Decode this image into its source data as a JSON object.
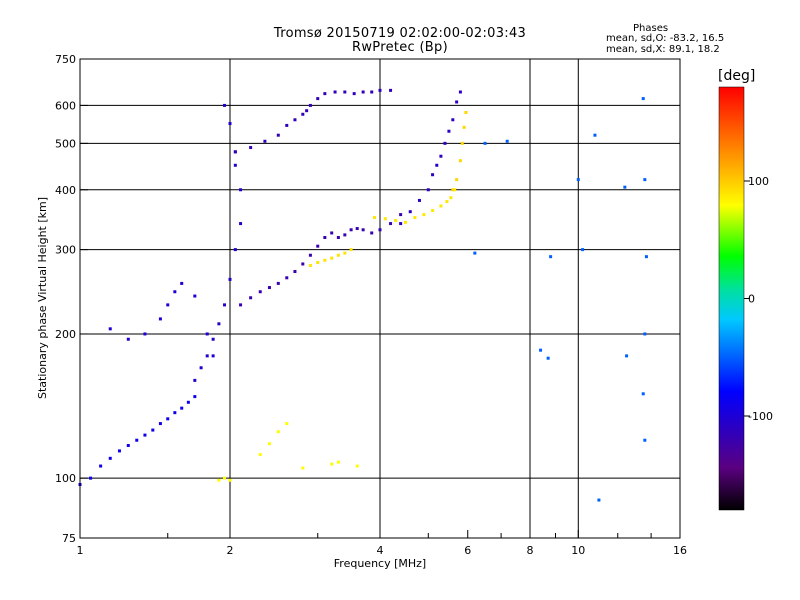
{
  "title": {
    "line1": "Tromsø 20150719 02:02:00-02:03:43",
    "line2": "RwPretec (Bp)"
  },
  "phases": {
    "heading": "Phases",
    "line_o": "mean, sd,O: -83.2, 16.5",
    "line_x": "mean, sd,X:  89.1, 18.2"
  },
  "chart_data": {
    "type": "scatter",
    "title": "Tromsø 20150719 02:02:00-02:03:43",
    "subtitle": "RwPretec (Bp)",
    "xlabel": "Frequency [MHz]",
    "ylabel": "Stationary phase Virtual Height [km]",
    "x_scale": "log",
    "y_scale": "log",
    "xlim": [
      1,
      16
    ],
    "ylim": [
      75,
      750
    ],
    "x_ticks": [
      1,
      2,
      4,
      6,
      8,
      10,
      16
    ],
    "x_tick_labels": [
      "1",
      "2",
      "4",
      "6",
      "8",
      "10",
      "16"
    ],
    "x_gridlines": [
      2,
      4,
      8,
      10
    ],
    "y_ticks": [
      75,
      100,
      200,
      300,
      400,
      500,
      600,
      750
    ],
    "y_tick_labels": [
      "75",
      "100",
      "200",
      "300",
      "400",
      "500",
      "600",
      "750"
    ],
    "y_gridlines": [
      100,
      200,
      300,
      400,
      500,
      600
    ],
    "grid": true,
    "colorbar": {
      "label": "[deg]",
      "ticks": [
        100,
        0,
        -100
      ],
      "tick_labels": [
        "100",
        "0",
        "-100"
      ],
      "range": [
        -180,
        180
      ]
    },
    "series": [
      {
        "values": [
          [
            1.0,
            97
          ],
          [
            1.05,
            100
          ],
          [
            1.1,
            106
          ],
          [
            1.15,
            110
          ],
          [
            1.2,
            114
          ],
          [
            1.25,
            117
          ],
          [
            1.3,
            120
          ],
          [
            1.35,
            123
          ],
          [
            1.4,
            126
          ],
          [
            1.45,
            130
          ],
          [
            1.5,
            133
          ],
          [
            1.55,
            137
          ],
          [
            1.6,
            140
          ],
          [
            1.65,
            144
          ],
          [
            1.7,
            148
          ]
        ],
        "phase": -90
      },
      {
        "values": [
          [
            1.15,
            205
          ],
          [
            1.25,
            195
          ],
          [
            1.35,
            200
          ],
          [
            1.45,
            215
          ],
          [
            1.5,
            230
          ],
          [
            1.55,
            245
          ],
          [
            1.6,
            255
          ],
          [
            1.7,
            240
          ],
          [
            1.8,
            200
          ],
          [
            1.85,
            180
          ]
        ],
        "phase": -100
      },
      {
        "values": [
          [
            1.7,
            160
          ],
          [
            1.75,
            170
          ],
          [
            1.8,
            180
          ],
          [
            1.85,
            195
          ],
          [
            1.9,
            210
          ],
          [
            1.95,
            230
          ],
          [
            2.0,
            260
          ],
          [
            2.05,
            300
          ],
          [
            2.1,
            340
          ],
          [
            2.1,
            400
          ],
          [
            2.05,
            450
          ],
          [
            2.05,
            480
          ],
          [
            2.0,
            550
          ],
          [
            1.95,
            600
          ]
        ],
        "phase": -105
      },
      {
        "values": [
          [
            2.05,
            480
          ],
          [
            2.2,
            490
          ],
          [
            2.35,
            505
          ],
          [
            2.5,
            520
          ],
          [
            2.6,
            545
          ],
          [
            2.7,
            560
          ],
          [
            2.8,
            575
          ],
          [
            2.85,
            585
          ],
          [
            2.9,
            600
          ],
          [
            3.0,
            620
          ],
          [
            3.1,
            635
          ],
          [
            3.25,
            640
          ],
          [
            3.4,
            640
          ],
          [
            3.55,
            635
          ],
          [
            3.7,
            640
          ],
          [
            3.85,
            640
          ],
          [
            4.0,
            645
          ],
          [
            4.2,
            645
          ]
        ],
        "phase": -115
      },
      {
        "values": [
          [
            2.1,
            230
          ],
          [
            2.2,
            238
          ],
          [
            2.3,
            245
          ],
          [
            2.4,
            250
          ],
          [
            2.5,
            255
          ],
          [
            2.6,
            262
          ],
          [
            2.7,
            270
          ],
          [
            2.8,
            280
          ],
          [
            2.9,
            292
          ],
          [
            3.0,
            305
          ],
          [
            3.1,
            318
          ],
          [
            3.2,
            325
          ],
          [
            3.3,
            318
          ],
          [
            3.4,
            322
          ],
          [
            3.5,
            330
          ],
          [
            3.6,
            332
          ],
          [
            3.7,
            330
          ],
          [
            3.85,
            325
          ],
          [
            4.0,
            330
          ],
          [
            4.2,
            340
          ],
          [
            4.4,
            355
          ]
        ],
        "phase": -120
      },
      {
        "values": [
          [
            2.9,
            278
          ],
          [
            3.0,
            282
          ],
          [
            3.1,
            285
          ],
          [
            3.2,
            288
          ],
          [
            3.3,
            292
          ],
          [
            3.4,
            295
          ],
          [
            3.5,
            300
          ]
        ],
        "phase": 90
      },
      {
        "values": [
          [
            3.9,
            350
          ],
          [
            4.1,
            348
          ],
          [
            4.3,
            345
          ],
          [
            4.5,
            342
          ],
          [
            4.7,
            350
          ],
          [
            4.9,
            355
          ],
          [
            5.1,
            362
          ],
          [
            5.3,
            370
          ],
          [
            5.45,
            378
          ],
          [
            5.55,
            385
          ],
          [
            5.65,
            400
          ]
        ],
        "phase": 88
      },
      {
        "values": [
          [
            4.4,
            340
          ],
          [
            4.6,
            360
          ],
          [
            4.8,
            380
          ],
          [
            5.0,
            400
          ],
          [
            5.1,
            430
          ],
          [
            5.2,
            450
          ],
          [
            5.3,
            470
          ],
          [
            5.4,
            500
          ],
          [
            5.5,
            530
          ],
          [
            5.6,
            560
          ],
          [
            5.7,
            610
          ],
          [
            5.8,
            640
          ]
        ],
        "phase": -110
      },
      {
        "values": [
          [
            5.6,
            400
          ],
          [
            5.7,
            420
          ],
          [
            5.8,
            460
          ],
          [
            5.85,
            500
          ],
          [
            5.9,
            540
          ],
          [
            5.95,
            580
          ]
        ],
        "phase": 95
      },
      {
        "values": [
          [
            1.9,
            99
          ],
          [
            1.95,
            100
          ],
          [
            2.0,
            99
          ],
          [
            2.3,
            112
          ],
          [
            2.4,
            118
          ],
          [
            2.5,
            125
          ],
          [
            2.6,
            130
          ],
          [
            2.8,
            105
          ],
          [
            3.2,
            107
          ],
          [
            3.3,
            108
          ],
          [
            3.6,
            106
          ]
        ],
        "phase": 80
      },
      {
        "values": [
          [
            6.2,
            295
          ],
          [
            6.5,
            500
          ],
          [
            7.2,
            505
          ],
          [
            8.4,
            185
          ],
          [
            8.7,
            178
          ],
          [
            8.8,
            290
          ],
          [
            10.0,
            420
          ],
          [
            10.2,
            300
          ],
          [
            10.8,
            520
          ],
          [
            11.0,
            90
          ],
          [
            12.4,
            405
          ],
          [
            12.5,
            180
          ],
          [
            13.5,
            620
          ],
          [
            13.6,
            420
          ],
          [
            13.7,
            290
          ],
          [
            13.6,
            200
          ],
          [
            13.5,
            150
          ],
          [
            13.6,
            120
          ]
        ],
        "phase": -50
      }
    ]
  }
}
